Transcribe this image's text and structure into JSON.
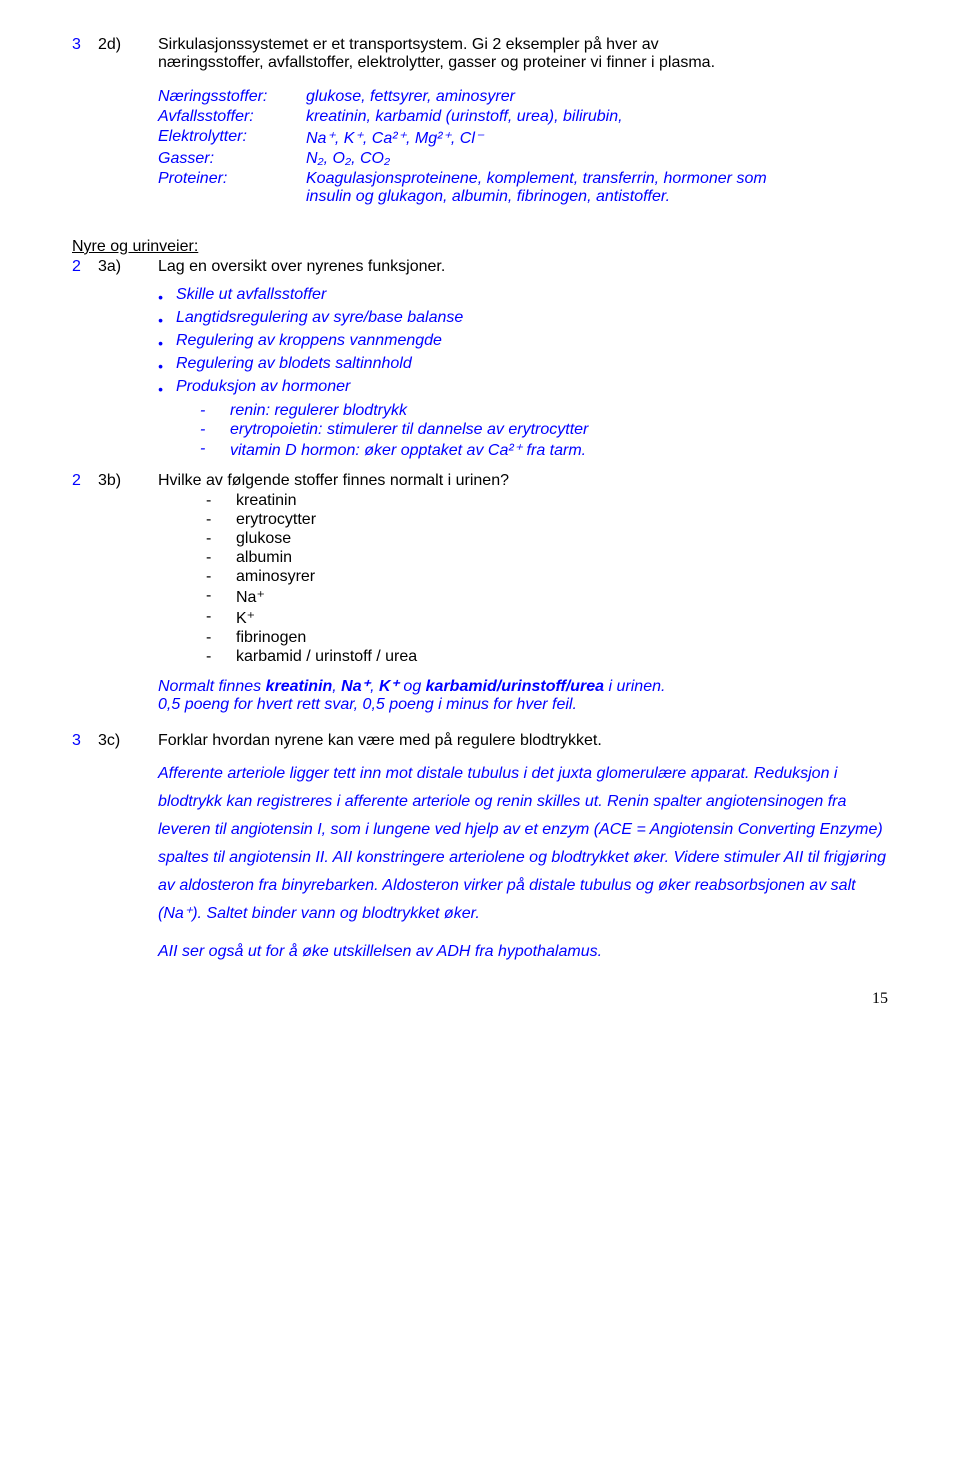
{
  "q2d": {
    "points": "3",
    "num": "2d)",
    "text_a": "Sirkulasjonssystemet er et transportsystem. Gi 2 eksempler på hver av",
    "text_b": "næringsstoffer, avfallstoffer, elektrolytter, gasser og proteiner vi finner i plasma.",
    "defs": [
      {
        "label": "Næringsstoffer:",
        "value": "glukose, fettsyrer, aminosyrer"
      },
      {
        "label": "Avfallsstoffer:",
        "value": "kreatinin, karbamid (urinstoff, urea), bilirubin,"
      },
      {
        "label": "Elektrolytter:",
        "value": "Na⁺, K⁺, Ca²⁺, Mg²⁺, Cl⁻"
      },
      {
        "label": "Gasser:",
        "value": "N₂, O₂, CO₂"
      },
      {
        "label": "Proteiner:",
        "value_a": "Koagulasjonsproteinene, komplement, transferrin, hormoner som",
        "value_b": "insulin og glukagon, albumin, fibrinogen, antistoffer."
      }
    ]
  },
  "section_heading": "Nyre og urinveier:",
  "q3a": {
    "points": "2",
    "num": "3a)",
    "text": "Lag en oversikt over nyrenes funksjoner.",
    "bullets": [
      "Skille ut avfallsstoffer",
      "Langtidsregulering av syre/base balanse",
      "Regulering av kroppens vannmengde",
      "Regulering av blodets saltinnhold",
      "Produksjon av hormoner"
    ],
    "subbullets": [
      "renin: regulerer blodtrykk",
      "erytropoietin: stimulerer til dannelse av erytrocytter",
      "vitamin D hormon: øker opptaket av Ca²⁺ fra tarm."
    ]
  },
  "q3b": {
    "points": "2",
    "num": "3b)",
    "text": "Hvilke av følgende stoffer finnes normalt i urinen?",
    "dashes": [
      "kreatinin",
      "erytrocytter",
      "glukose",
      "albumin",
      "aminosyrer",
      "Na⁺",
      "K⁺",
      "fibrinogen",
      "karbamid / urinstoff / urea"
    ],
    "note_a_pre": "Normalt finnes ",
    "note_a_bold1": "kreatinin",
    "note_a_mid1": ", ",
    "note_a_bold2": "Na⁺",
    "note_a_mid2": ", ",
    "note_a_bold3": "K⁺",
    "note_a_mid3": " og ",
    "note_a_bold4": "karbamid/urinstoff/urea",
    "note_a_post": " i urinen.",
    "note_b": "0,5 poeng for hvert rett svar, 0,5 poeng i minus for hver feil."
  },
  "q3c": {
    "points": "3",
    "num": "3c)",
    "text": "Forklar hvordan nyrene kan være med på regulere blodtrykket.",
    "para1": "Afferente arteriole ligger tett inn mot distale tubulus i det juxta glomerulære apparat. Reduksjon i blodtrykk kan registreres i afferente arteriole og renin skilles ut. Renin spalter angiotensinogen fra leveren til angiotensin I, som i lungene ved hjelp av et enzym (ACE = Angiotensin Converting Enzyme) spaltes til angiotensin II. AII konstringere arteriolene og blodtrykket øker. Videre stimuler AII til frigjøring av aldosteron fra binyrebarken. Aldosteron virker på distale tubulus og øker reabsorbsjonen av salt (Na⁺). Saltet binder vann og blodtrykket øker.",
    "para2": "AII ser også ut for å øke utskillelsen av ADH fra hypothalamus."
  },
  "page_number": "15"
}
